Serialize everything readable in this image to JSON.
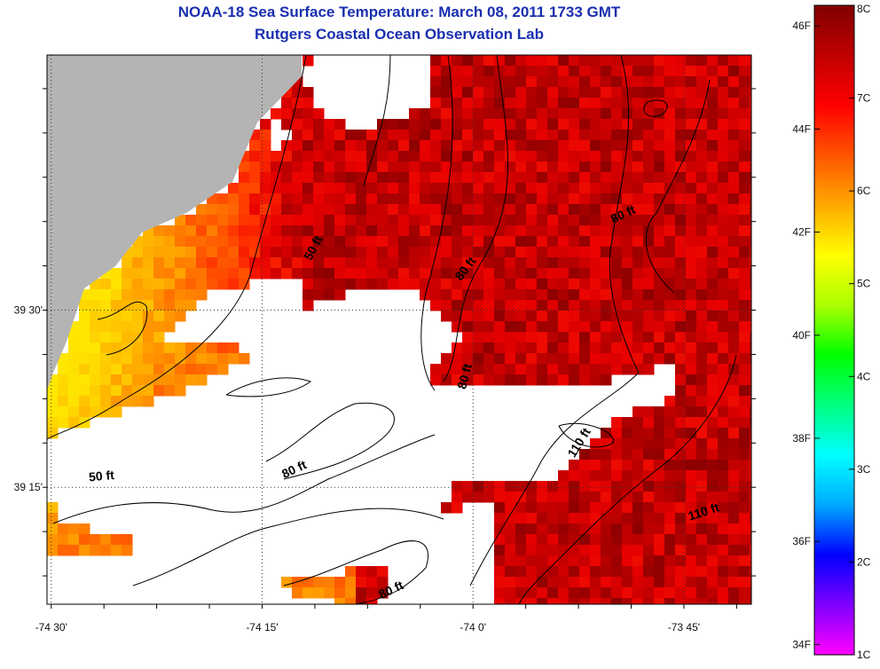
{
  "title": "NOAA-18 Sea Surface Temperature:  March 08, 2011 1733 GMT",
  "subtitle": "Rutgers Coastal Ocean Observation Lab",
  "chart_data": {
    "type": "heatmap",
    "title": "NOAA-18 Sea Surface Temperature:  March 08, 2011 1733 GMT",
    "subtitle": "Rutgers Coastal Ocean Observation Lab",
    "x_tick_labels": [
      "-74 30'",
      "-74 15'",
      "-74 0'",
      "-73 45'"
    ],
    "x_tick_values": [
      -74.5,
      -74.25,
      -74.0,
      -73.75
    ],
    "y_tick_labels": [
      "39 30'",
      "39 15'"
    ],
    "y_tick_values": [
      39.5,
      39.25
    ],
    "xlim": [
      -74.505,
      -73.67
    ],
    "ylim": [
      39.085,
      39.86
    ],
    "grid": true,
    "contour_labels": [
      {
        "text": "50 ft",
        "lon": -74.185,
        "lat": 39.585,
        "angle": -62
      },
      {
        "text": "80 ft",
        "lon": -74.005,
        "lat": 39.555,
        "angle": -52
      },
      {
        "text": "80 ft",
        "lon": -73.82,
        "lat": 39.63,
        "angle": -25
      },
      {
        "text": "80 ft",
        "lon": -74.005,
        "lat": 39.405,
        "angle": -75
      },
      {
        "text": "110 ft",
        "lon": -73.87,
        "lat": 39.31,
        "angle": -58
      },
      {
        "text": "110 ft",
        "lon": -73.725,
        "lat": 39.21,
        "angle": -18
      },
      {
        "text": "80 ft",
        "lon": -74.21,
        "lat": 39.27,
        "angle": -25
      },
      {
        "text": "50 ft",
        "lon": -74.44,
        "lat": 39.26,
        "angle": -5
      },
      {
        "text": "80 ft",
        "lon": -74.095,
        "lat": 39.1,
        "angle": -25
      }
    ],
    "colorbar": {
      "fahrenheit_labels": [
        "46F",
        "44F",
        "42F",
        "40F",
        "38F",
        "36F",
        "34F"
      ],
      "fahrenheit_values": [
        46,
        44,
        42,
        40,
        38,
        36,
        34
      ],
      "celsius_labels": [
        "8C",
        "7C",
        "6C",
        "5C",
        "4C",
        "3C",
        "2C",
        "1C"
      ],
      "celsius_values": [
        8,
        7,
        6,
        5,
        4,
        3,
        2,
        1
      ],
      "range_c": [
        1,
        8
      ],
      "colors": [
        "#ff00ff",
        "#7f00ff",
        "#0000ff",
        "#00aaff",
        "#00ffff",
        "#00ff7f",
        "#00ff00",
        "#aaff00",
        "#ffff00",
        "#ffaa00",
        "#ff5500",
        "#ff0000",
        "#c00000",
        "#800000"
      ]
    },
    "land_color": "#b4b4b4",
    "no_data_color": "#ffffff"
  }
}
